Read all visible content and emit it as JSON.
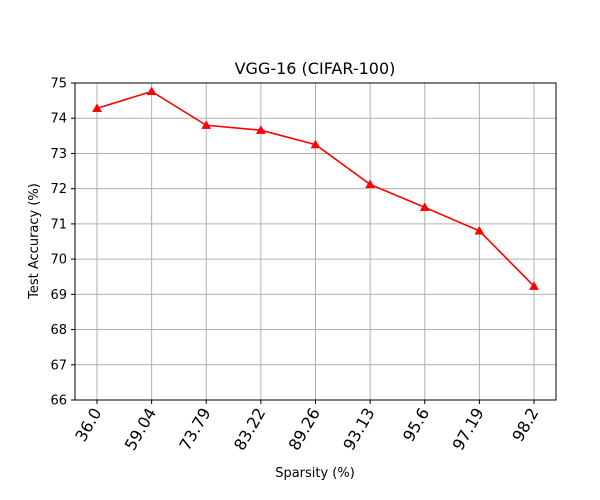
{
  "chart_data": {
    "type": "line",
    "title": "VGG-16 (CIFAR-100)",
    "xlabel": "Sparsity (%)",
    "ylabel": "Test Accuracy (%)",
    "categories": [
      "36.0",
      "59.04",
      "73.79",
      "83.22",
      "89.26",
      "93.13",
      "95.6",
      "97.19",
      "98.2"
    ],
    "series": [
      {
        "name": "Test Accuracy",
        "values": [
          74.28,
          74.76,
          73.8,
          73.66,
          73.25,
          72.12,
          71.47,
          70.8,
          69.23
        ],
        "color": "#ff0000",
        "marker": "triangle-up"
      }
    ],
    "ylim": [
      66,
      75
    ],
    "yticks": [
      66,
      67,
      68,
      69,
      70,
      71,
      72,
      73,
      74,
      75
    ],
    "xtick_rotation": 60,
    "grid": true
  }
}
